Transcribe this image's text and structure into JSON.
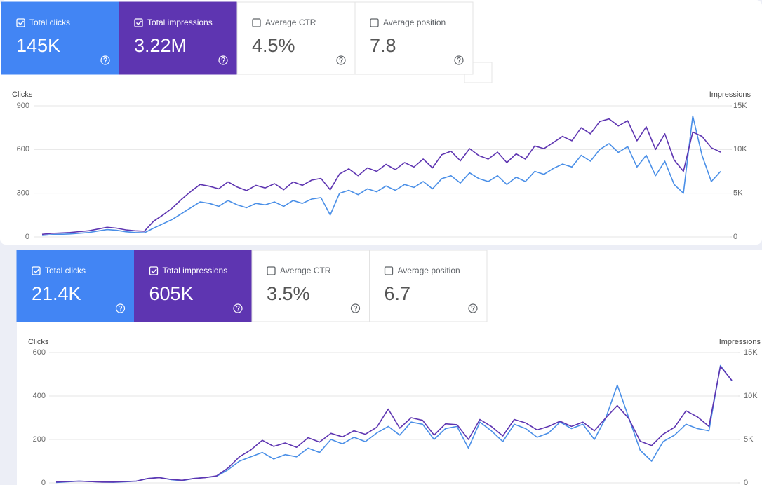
{
  "chart_data": [
    {
      "type": "line",
      "cards": [
        {
          "label": "Total clicks",
          "value": "145K",
          "checked": true,
          "color": "#4285f4"
        },
        {
          "label": "Total impressions",
          "value": "3.22M",
          "checked": true,
          "color": "#5e35b1"
        },
        {
          "label": "Average CTR",
          "value": "4.5%",
          "checked": false
        },
        {
          "label": "Average position",
          "value": "7.8",
          "checked": false
        }
      ],
      "y_label": "Clicks",
      "y2_label": "Impressions",
      "ylim": [
        0,
        900
      ],
      "yticks": [
        0,
        300,
        600,
        900
      ],
      "y2lim": [
        0,
        15000
      ],
      "y2ticks": [
        0,
        {
          "value": 5000,
          "label": "5K"
        },
        {
          "value": 10000,
          "label": "10K"
        },
        {
          "value": 15000,
          "label": "15K"
        }
      ],
      "grid": true,
      "series": [
        {
          "color": "#4a8fe7",
          "values": [
            10,
            15,
            18,
            20,
            25,
            30,
            40,
            50,
            45,
            35,
            30,
            28,
            60,
            90,
            120,
            160,
            200,
            240,
            230,
            210,
            250,
            220,
            200,
            230,
            220,
            240,
            210,
            250,
            230,
            260,
            270,
            150,
            300,
            320,
            290,
            330,
            310,
            350,
            320,
            360,
            340,
            380,
            330,
            400,
            420,
            370,
            440,
            400,
            380,
            420,
            360,
            410,
            380,
            450,
            430,
            470,
            500,
            480,
            560,
            520,
            600,
            640,
            580,
            620,
            480,
            560,
            420,
            520,
            360,
            300,
            830,
            560,
            380,
            450
          ]
        },
        {
          "color": "#5e35b1",
          "axis": "y2",
          "values": [
            300,
            400,
            450,
            500,
            600,
            700,
            900,
            1100,
            1000,
            800,
            700,
            650,
            1800,
            2500,
            3300,
            4300,
            5200,
            6000,
            5800,
            5500,
            6300,
            5700,
            5300,
            5900,
            5600,
            6100,
            5400,
            6300,
            5900,
            6500,
            6700,
            5400,
            7200,
            7800,
            7000,
            7900,
            7500,
            8300,
            7700,
            8500,
            8000,
            8900,
            7900,
            9400,
            9800,
            8700,
            10100,
            9300,
            8900,
            9700,
            8500,
            9500,
            8900,
            10400,
            10100,
            10800,
            11500,
            11000,
            12500,
            11800,
            13200,
            13500,
            12700,
            13300,
            11000,
            12600,
            10000,
            11800,
            8800,
            7500,
            12000,
            11500,
            10200,
            9700
          ]
        }
      ]
    },
    {
      "type": "line",
      "cards": [
        {
          "label": "Total clicks",
          "value": "21.4K",
          "checked": true,
          "color": "#4285f4"
        },
        {
          "label": "Total impressions",
          "value": "605K",
          "checked": true,
          "color": "#5e35b1"
        },
        {
          "label": "Average CTR",
          "value": "3.5%",
          "checked": false
        },
        {
          "label": "Average position",
          "value": "6.7",
          "checked": false
        }
      ],
      "y_label": "Clicks",
      "y2_label": "Impressions",
      "ylim": [
        0,
        600
      ],
      "yticks": [
        0,
        200,
        400,
        600
      ],
      "y2lim": [
        0,
        15000
      ],
      "y2ticks": [
        0,
        {
          "value": 5000,
          "label": "5K"
        },
        {
          "value": 10000,
          "label": "10K"
        },
        {
          "value": 15000,
          "label": "15K"
        }
      ],
      "grid": true,
      "series": [
        {
          "color": "#4a8fe7",
          "values": [
            2,
            5,
            8,
            6,
            4,
            3,
            5,
            8,
            20,
            25,
            15,
            10,
            20,
            25,
            30,
            60,
            100,
            120,
            140,
            110,
            130,
            120,
            160,
            140,
            200,
            180,
            210,
            190,
            230,
            260,
            220,
            280,
            270,
            200,
            250,
            260,
            160,
            280,
            240,
            190,
            270,
            250,
            210,
            230,
            280,
            250,
            270,
            200,
            300,
            450,
            300,
            150,
            100,
            190,
            220,
            270,
            250,
            240,
            540,
            470
          ]
        },
        {
          "color": "#5e35b1",
          "axis": "y2",
          "values": [
            100,
            150,
            200,
            150,
            100,
            100,
            150,
            200,
            500,
            600,
            400,
            300,
            500,
            600,
            800,
            1700,
            3000,
            3800,
            4900,
            4200,
            4600,
            4100,
            5200,
            4700,
            5700,
            5300,
            6000,
            5600,
            6400,
            8500,
            6300,
            7500,
            7200,
            5500,
            6800,
            6700,
            5000,
            7300,
            6500,
            5400,
            7300,
            6900,
            6100,
            6500,
            7100,
            6500,
            7000,
            6000,
            7500,
            8900,
            7400,
            4800,
            4300,
            5600,
            6400,
            8300,
            7600,
            6500,
            13400,
            11800
          ]
        }
      ]
    }
  ]
}
